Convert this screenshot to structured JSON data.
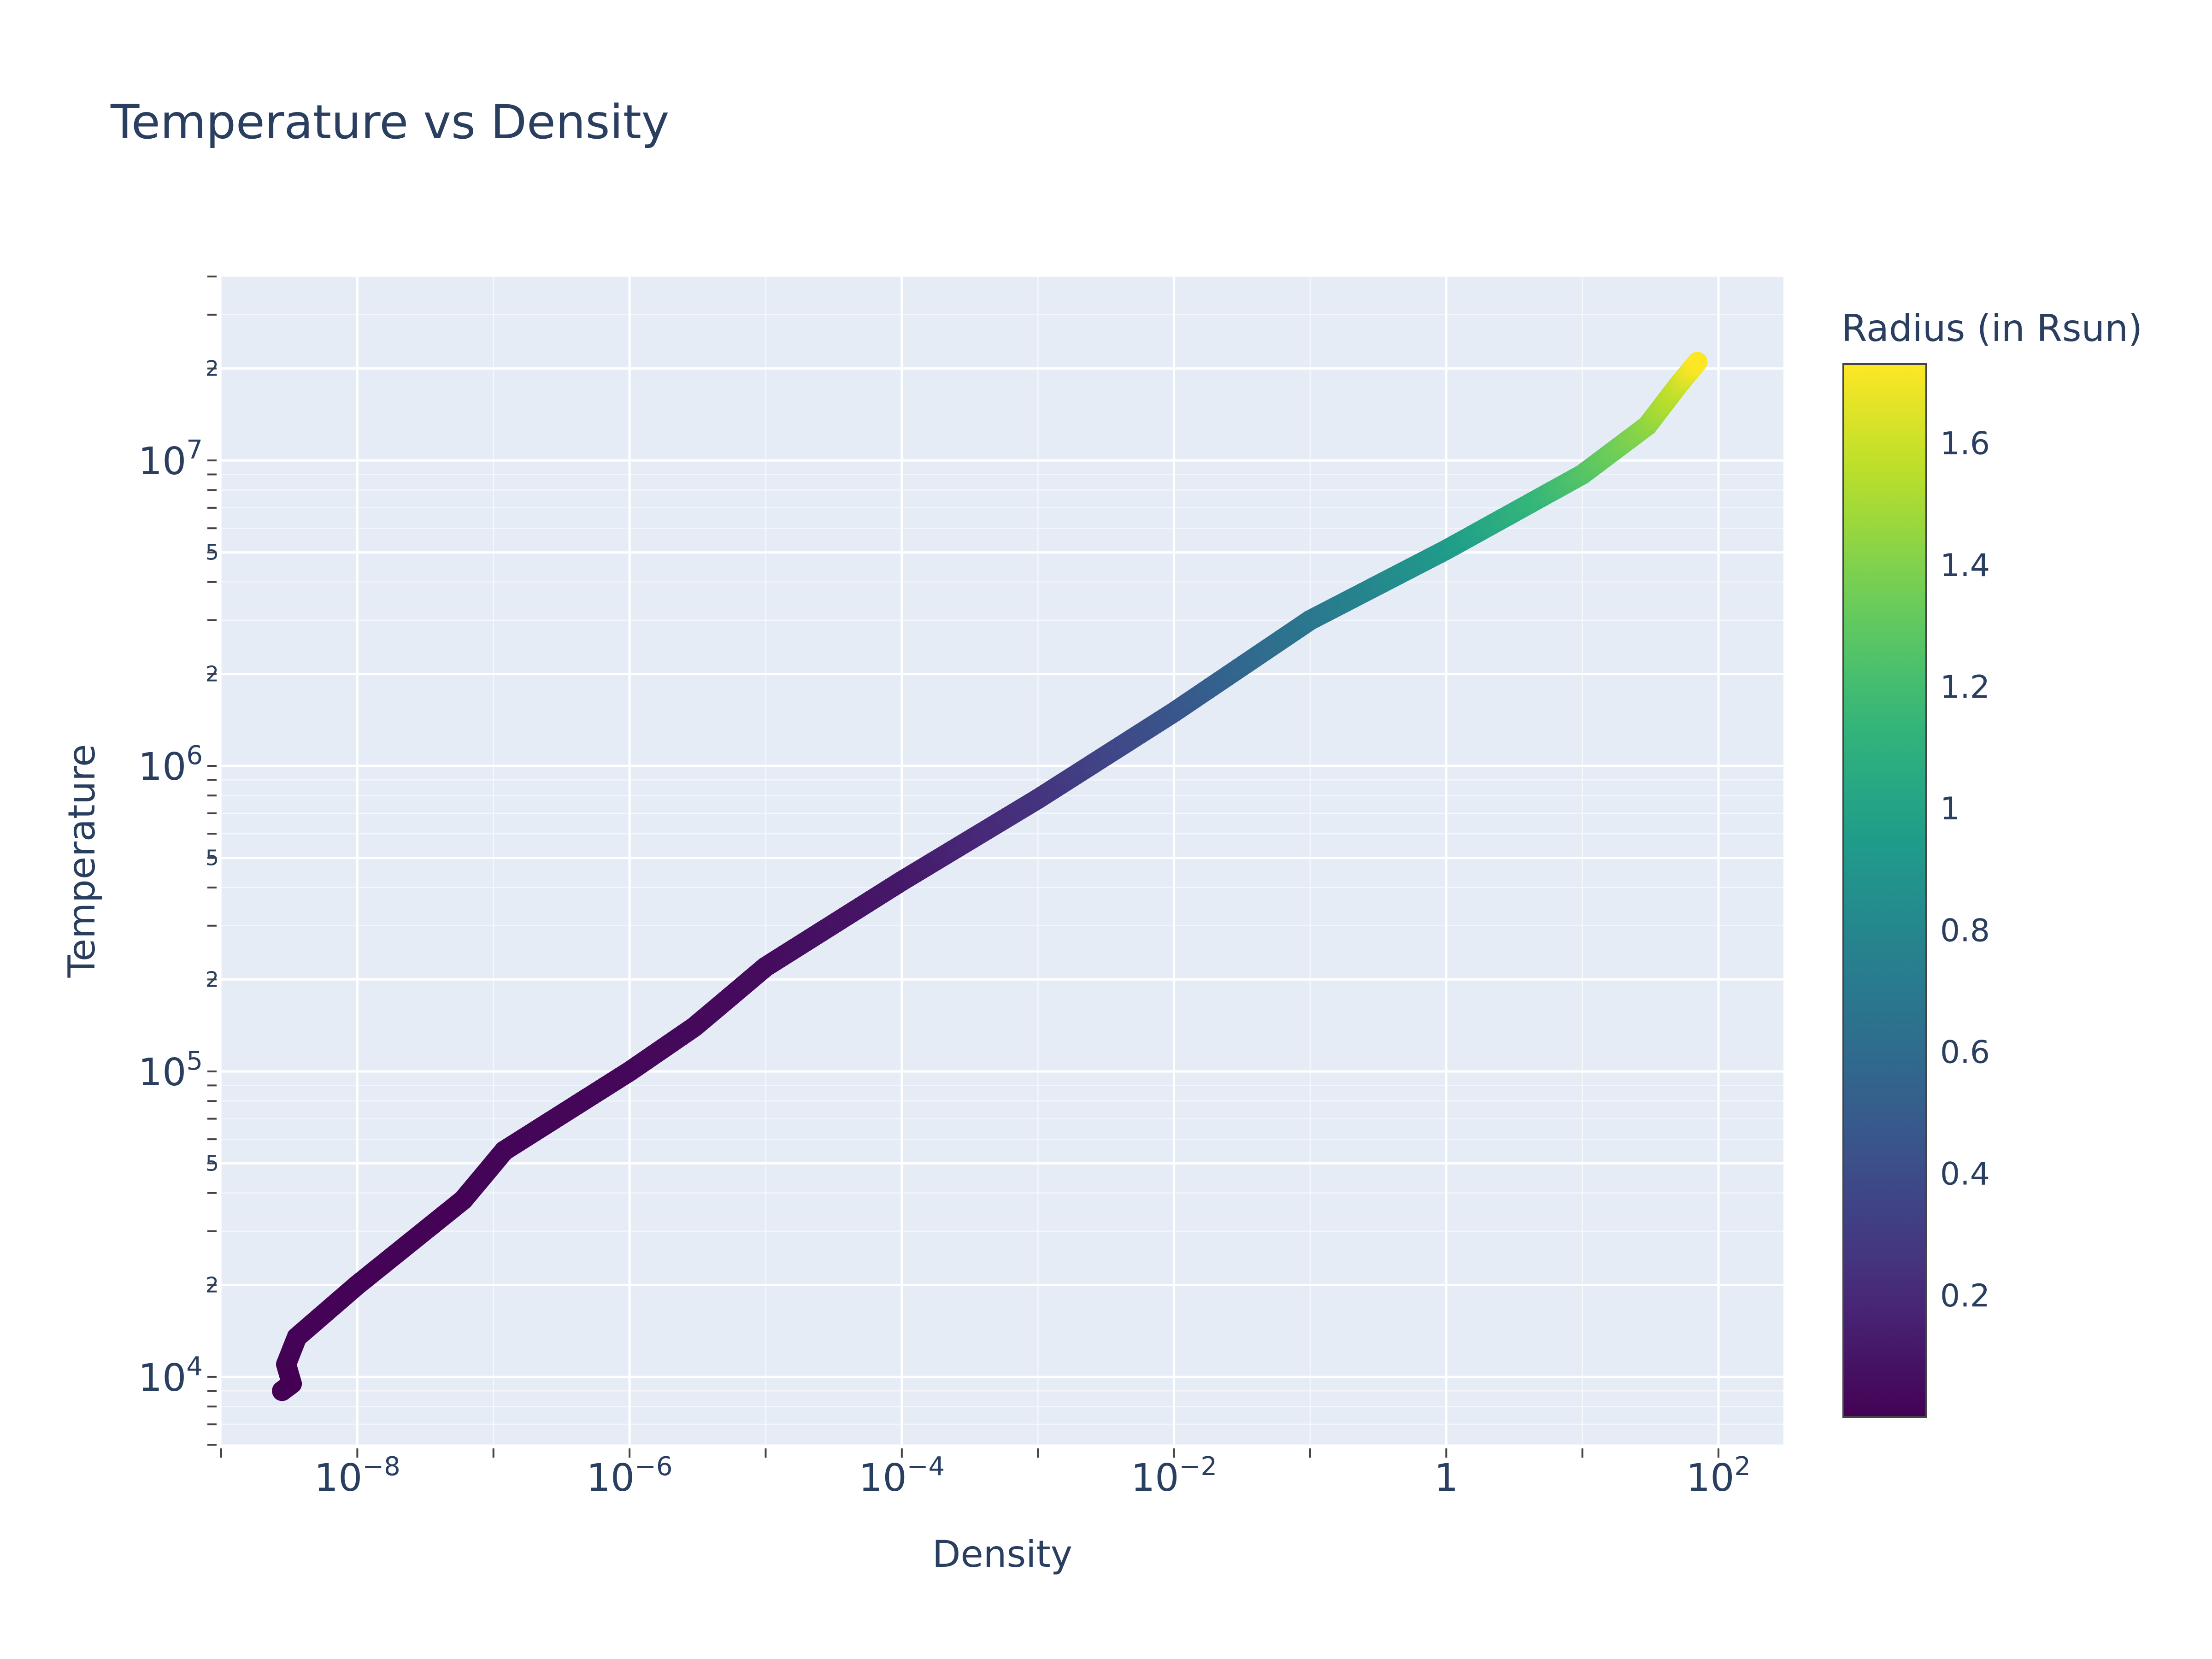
{
  "chart_data": {
    "type": "scatter",
    "title": "Temperature vs Density",
    "xlabel": "Density",
    "ylabel": "Temperature",
    "x_scale": "log",
    "y_scale": "log",
    "xlim": [
      1e-09,
      300
    ],
    "ylim": [
      6000,
      40000000
    ],
    "grid": true,
    "x_ticks": [
      {
        "value": 1e-08,
        "base": "10",
        "exp": "−8"
      },
      {
        "value": 1e-06,
        "base": "10",
        "exp": "−6"
      },
      {
        "value": 0.0001,
        "base": "10",
        "exp": "−4"
      },
      {
        "value": 0.01,
        "base": "10",
        "exp": "−2"
      },
      {
        "value": 1,
        "base": "1",
        "exp": ""
      },
      {
        "value": 100,
        "base": "10",
        "exp": "2"
      }
    ],
    "y_ticks": [
      {
        "value": 10000,
        "base": "10",
        "exp": "4"
      },
      {
        "value": 100000,
        "base": "10",
        "exp": "5"
      },
      {
        "value": 1000000,
        "base": "10",
        "exp": "6"
      },
      {
        "value": 10000000,
        "base": "10",
        "exp": "7"
      }
    ],
    "y_minor_labels": [
      {
        "value": 20000,
        "label": "2"
      },
      {
        "value": 50000,
        "label": "5"
      },
      {
        "value": 200000,
        "label": "2"
      },
      {
        "value": 500000,
        "label": "5"
      },
      {
        "value": 2000000,
        "label": "2"
      },
      {
        "value": 5000000,
        "label": "5"
      },
      {
        "value": 20000000,
        "label": "2"
      }
    ],
    "colorbar": {
      "title": "Radius (in Rsun)",
      "colorscale": "viridis",
      "reversed": true,
      "range": [
        0.0,
        1.73
      ],
      "ticks": [
        1.6,
        1.4,
        1.2,
        1,
        0.8,
        0.6,
        0.4,
        0.2
      ],
      "tick_labels": [
        "1.6",
        "1.4",
        "1.2",
        "1",
        "0.8",
        "0.6",
        "0.4",
        "0.2"
      ]
    },
    "series": [
      {
        "points": [
          {
            "x": 2.8e-09,
            "y": 9000,
            "r": 1.73
          },
          {
            "x": 3.3e-09,
            "y": 9500,
            "r": 1.73
          },
          {
            "x": 3e-09,
            "y": 11000,
            "r": 1.73
          },
          {
            "x": 3.6e-09,
            "y": 13500,
            "r": 1.72
          },
          {
            "x": 1e-08,
            "y": 20000,
            "r": 1.72
          },
          {
            "x": 6e-08,
            "y": 38000,
            "r": 1.72
          },
          {
            "x": 1.2e-07,
            "y": 55000,
            "r": 1.71
          },
          {
            "x": 1e-06,
            "y": 100000,
            "r": 1.7
          },
          {
            "x": 3e-06,
            "y": 140000,
            "r": 1.69
          },
          {
            "x": 1e-05,
            "y": 220000,
            "r": 1.68
          },
          {
            "x": 0.0001,
            "y": 420000,
            "r": 1.62
          },
          {
            "x": 0.001,
            "y": 780000,
            "r": 1.48
          },
          {
            "x": 0.01,
            "y": 1500000,
            "r": 1.28
          },
          {
            "x": 0.1,
            "y": 3000000,
            "r": 1.05
          },
          {
            "x": 1.0,
            "y": 5100000,
            "r": 0.8
          },
          {
            "x": 10,
            "y": 9000000,
            "r": 0.48
          },
          {
            "x": 30,
            "y": 13000000,
            "r": 0.3
          },
          {
            "x": 50,
            "y": 17500000,
            "r": 0.15
          },
          {
            "x": 70,
            "y": 21000000,
            "r": 0.0
          }
        ]
      }
    ]
  }
}
